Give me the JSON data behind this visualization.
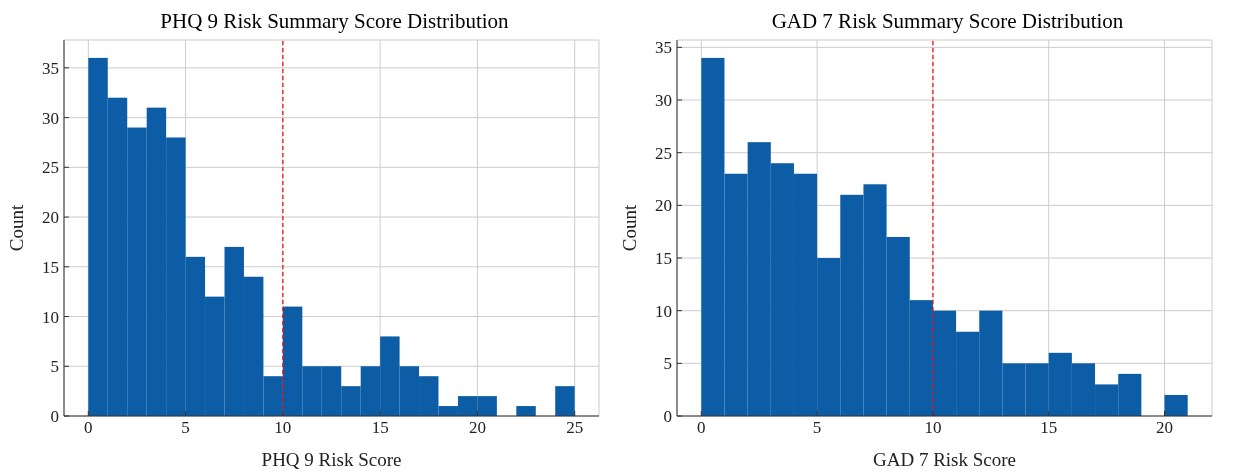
{
  "chart_data": [
    {
      "type": "histogram",
      "title": "PHQ 9 Risk Summary Score Distribution",
      "xlabel": "PHQ 9 Risk Score",
      "ylabel": "Count",
      "bins": [
        0,
        1,
        2,
        3,
        4,
        5,
        6,
        7,
        8,
        9,
        10,
        11,
        12,
        13,
        14,
        15,
        16,
        17,
        18,
        19,
        20,
        21,
        22,
        23,
        24,
        25
      ],
      "values": [
        36,
        32,
        29,
        31,
        28,
        16,
        12,
        17,
        14,
        4,
        11,
        5,
        5,
        3,
        5,
        8,
        5,
        4,
        1,
        2,
        2,
        0,
        1,
        0,
        3
      ],
      "color": "#0c5da5",
      "xlim": [
        -1.25,
        26.25
      ],
      "ylim": [
        0,
        37.8
      ],
      "xticks": [
        0,
        5,
        10,
        15,
        20,
        25
      ],
      "yticks": [
        0,
        5,
        10,
        15,
        20,
        25,
        30,
        35
      ],
      "grid": true,
      "ref_lines": [
        {
          "axis": "x",
          "value": 10,
          "color": "#ff0000",
          "line_style": "dashed"
        }
      ]
    },
    {
      "type": "histogram",
      "title": "GAD 7 Risk Summary Score Distribution",
      "xlabel": "GAD 7 Risk Score",
      "ylabel": "Count",
      "bins": [
        0,
        1,
        2,
        3,
        4,
        5,
        6,
        7,
        8,
        9,
        10,
        11,
        12,
        13,
        14,
        15,
        16,
        17,
        18,
        19,
        20,
        21
      ],
      "values": [
        34,
        23,
        26,
        24,
        23,
        15,
        21,
        22,
        17,
        11,
        10,
        8,
        10,
        5,
        5,
        6,
        5,
        3,
        4,
        0,
        2
      ],
      "color": "#0c5da5",
      "xlim": [
        -1.05,
        22.05
      ],
      "ylim": [
        0,
        35.7
      ],
      "xticks": [
        0,
        5,
        10,
        15,
        20
      ],
      "yticks": [
        0,
        5,
        10,
        15,
        20,
        25,
        30,
        35
      ],
      "grid": true,
      "ref_lines": [
        {
          "axis": "x",
          "value": 10,
          "color": "#ff0000",
          "line_style": "dashed"
        }
      ]
    }
  ]
}
